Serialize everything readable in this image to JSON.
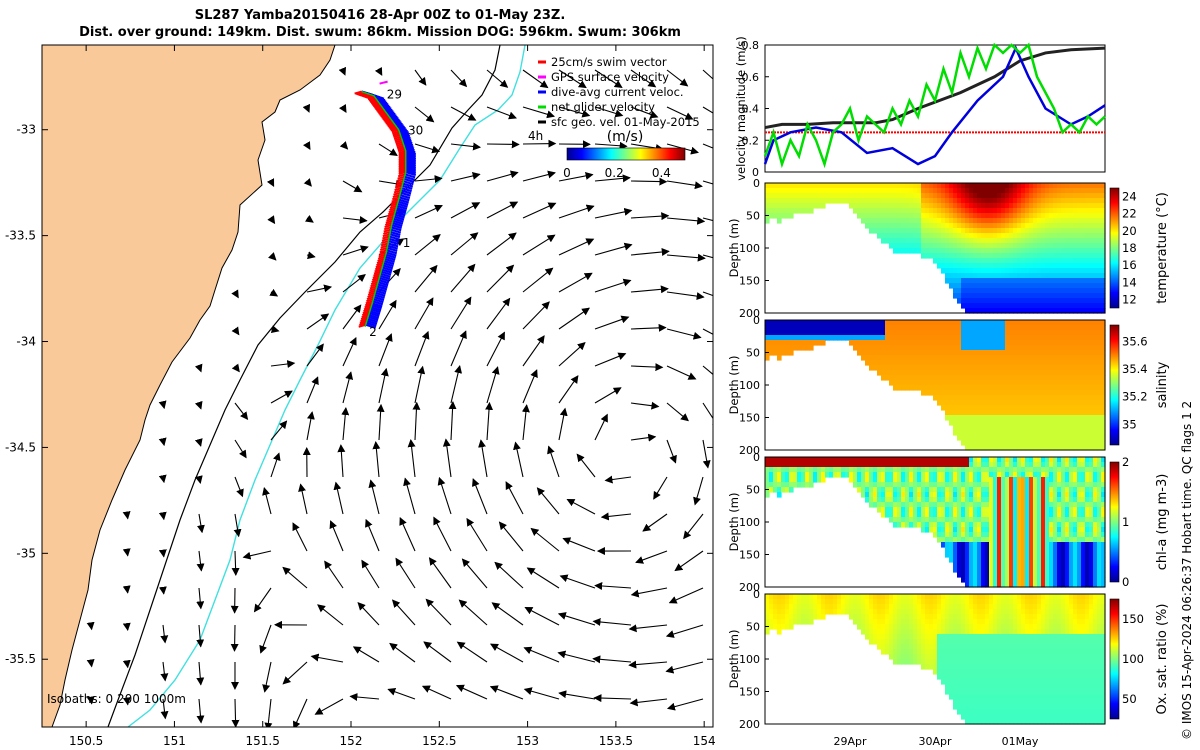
{
  "title_line1": "SL287 Yamba20150416 28-Apr 00Z to 01-May 23Z.",
  "title_line2": "Dist. over ground: 149km. Dist. swum: 86km. Mission DOG: 596km. Swum: 306km",
  "map": {
    "xticks": [
      "150.5",
      "151",
      "151.5",
      "152",
      "152.5",
      "153",
      "153.5",
      "154"
    ],
    "xtick_values": [
      150.5,
      151,
      151.5,
      152,
      152.5,
      153,
      153.5,
      154
    ],
    "yticks": [
      "-33",
      "-33.5",
      "-34",
      "-34.5",
      "-35",
      "-35.5"
    ],
    "ytick_values": [
      -33,
      -33.5,
      -34,
      -34.5,
      -35,
      -35.5
    ],
    "xlim": [
      150.25,
      154.05
    ],
    "ylim": [
      -35.82,
      -32.6
    ],
    "land_color": "#f9c99a",
    "isobath_200_color": "#000000",
    "isobath_1000_color": "#40e0e0",
    "isobaths_label": "Isobaths: 0   200  1000m",
    "day_labels": [
      {
        "text": "29",
        "lon": 152.18,
        "lat": -32.83
      },
      {
        "text": "30",
        "lon": 152.3,
        "lat": -33.0
      },
      {
        "text": "1",
        "lon": 152.27,
        "lat": -33.53
      },
      {
        "text": "2",
        "lon": 152.08,
        "lat": -33.95
      }
    ],
    "glider_track": [
      [
        152.06,
        -32.82
      ],
      [
        152.13,
        -32.84
      ],
      [
        152.2,
        -32.92
      ],
      [
        152.27,
        -33.0
      ],
      [
        152.31,
        -33.1
      ],
      [
        152.31,
        -33.2
      ],
      [
        152.27,
        -33.33
      ],
      [
        152.23,
        -33.45
      ],
      [
        152.2,
        -33.58
      ],
      [
        152.16,
        -33.7
      ],
      [
        152.12,
        -33.82
      ],
      [
        152.08,
        -33.93
      ]
    ],
    "legend": {
      "entries": [
        {
          "label": "25cm/s swim vector",
          "color": "#ff0000"
        },
        {
          "label": "GPS surface velocity",
          "color": "#ff00ff"
        },
        {
          "label": "dive-avg current veloc.",
          "color": "#0000ff"
        },
        {
          "label": "net glider velocity",
          "color": "#00dd00"
        },
        {
          "label": "sfc geo. vel. 01-May-2015",
          "color": "#000000"
        }
      ],
      "time_label": "4h",
      "colorbar_label": "(m/s)",
      "colorbar_ticks": [
        "0",
        "0.2",
        "0.4"
      ],
      "colorbar_tick_values": [
        0,
        0.2,
        0.4
      ],
      "colorbar_range": [
        0,
        0.5
      ]
    }
  },
  "timeseries": {
    "xticks": [
      "29Apr",
      "30Apr",
      "01May"
    ],
    "xtick_days": [
      1,
      2,
      3
    ],
    "day_range": [
      0,
      4
    ],
    "velocity": {
      "ylabel": "velocity magnitude (m/s)",
      "yticks": [
        "0",
        "0.2",
        "0.4",
        "0.6",
        "0.8"
      ],
      "ytick_values": [
        0,
        0.2,
        0.4,
        0.6,
        0.8
      ],
      "ylim": [
        0,
        0.8
      ],
      "swim_level": 0.25,
      "series": [
        {
          "key": "sfc_geo",
          "color": "#222222",
          "x": [
            0,
            0.2,
            0.5,
            0.8,
            1.3,
            1.5,
            1.8,
            2.3,
            2.7,
            3.0,
            3.3,
            3.6,
            4.0
          ],
          "y": [
            0.28,
            0.3,
            0.3,
            0.31,
            0.31,
            0.33,
            0.4,
            0.5,
            0.6,
            0.7,
            0.75,
            0.77,
            0.78
          ]
        },
        {
          "key": "dive_avg",
          "color": "#0000dd",
          "x": [
            0,
            0.1,
            0.3,
            0.6,
            0.9,
            1.2,
            1.5,
            1.8,
            2.0,
            2.2,
            2.5,
            2.8,
            2.95,
            3.1,
            3.3,
            3.6,
            3.8,
            4.0
          ],
          "y": [
            0.05,
            0.2,
            0.25,
            0.28,
            0.25,
            0.12,
            0.15,
            0.05,
            0.1,
            0.25,
            0.45,
            0.6,
            0.78,
            0.6,
            0.4,
            0.3,
            0.35,
            0.42
          ]
        },
        {
          "key": "net_glider",
          "color": "#00dd00",
          "x": [
            0,
            0.1,
            0.2,
            0.3,
            0.4,
            0.5,
            0.6,
            0.7,
            0.8,
            0.9,
            1.0,
            1.1,
            1.2,
            1.3,
            1.4,
            1.5,
            1.6,
            1.7,
            1.8,
            1.9,
            2.0,
            2.1,
            2.2,
            2.3,
            2.4,
            2.5,
            2.6,
            2.7,
            2.8,
            2.9,
            3.0,
            3.1,
            3.2,
            3.3,
            3.4,
            3.5,
            3.6,
            3.7,
            3.8,
            3.9,
            4.0
          ],
          "y": [
            0.1,
            0.25,
            0.05,
            0.2,
            0.1,
            0.3,
            0.2,
            0.05,
            0.25,
            0.3,
            0.4,
            0.2,
            0.35,
            0.3,
            0.25,
            0.4,
            0.3,
            0.45,
            0.35,
            0.55,
            0.45,
            0.65,
            0.5,
            0.75,
            0.6,
            0.78,
            0.65,
            0.8,
            0.75,
            0.8,
            0.75,
            0.8,
            0.6,
            0.5,
            0.4,
            0.25,
            0.3,
            0.25,
            0.35,
            0.3,
            0.35
          ]
        }
      ]
    },
    "panels": [
      {
        "key": "temperature",
        "cbar_label": "temperature (°C)",
        "cbar_ticks": [
          "12",
          "14",
          "16",
          "18",
          "20",
          "22",
          "24"
        ],
        "cbar_tick_values": [
          12,
          14,
          16,
          18,
          20,
          22,
          24
        ],
        "cbar_range": [
          11,
          25
        ],
        "background_level": 20,
        "warm_core_level": 24.5,
        "deep_level": 12.5
      },
      {
        "key": "salinity",
        "cbar_label": "salinity",
        "cbar_ticks": [
          "35",
          "35.2",
          "35.4",
          "35.6"
        ],
        "cbar_tick_values": [
          35,
          35.2,
          35.4,
          35.6
        ],
        "cbar_range": [
          34.85,
          35.72
        ],
        "background_level": 35.5,
        "fresh_surface_level": 34.9,
        "deep_level": 35.35
      },
      {
        "key": "chla",
        "cbar_label": "chl-a (mg m-3)",
        "cbar_ticks": [
          "0",
          "1",
          "2"
        ],
        "cbar_tick_values": [
          0,
          1,
          2
        ],
        "cbar_range": [
          0,
          2
        ],
        "background_level": 1.0,
        "surface_level": 1.9,
        "deep_level": 0.4
      },
      {
        "key": "oxygen",
        "cbar_label": "Ox. sat. ratio (%)",
        "cbar_ticks": [
          "50",
          "100",
          "150"
        ],
        "cbar_tick_values": [
          50,
          100,
          150
        ],
        "cbar_range": [
          25,
          175
        ],
        "background_level": 110,
        "surface_level": 120,
        "deep_level": 95
      }
    ],
    "depth_ylabel": "Depth (m)",
    "depth_yticks": [
      "0",
      "50",
      "100",
      "150",
      "200"
    ],
    "depth_ytick_values": [
      0,
      50,
      100,
      150,
      200
    ],
    "depth_range": [
      0,
      200
    ],
    "bottom_profile": {
      "x": [
        0,
        0.05,
        0.15,
        0.3,
        0.5,
        0.7,
        0.9,
        1.0,
        1.1,
        1.3,
        1.5,
        1.7,
        1.9,
        2.0,
        2.2,
        2.4,
        2.5,
        4.0
      ],
      "y": [
        60,
        50,
        55,
        45,
        40,
        30,
        25,
        35,
        55,
        80,
        100,
        105,
        110,
        120,
        170,
        200,
        200,
        200
      ]
    }
  },
  "credit": "© IMOS 15-Apr-2024 06:26:37 Hobart time. QC flags 1  2"
}
